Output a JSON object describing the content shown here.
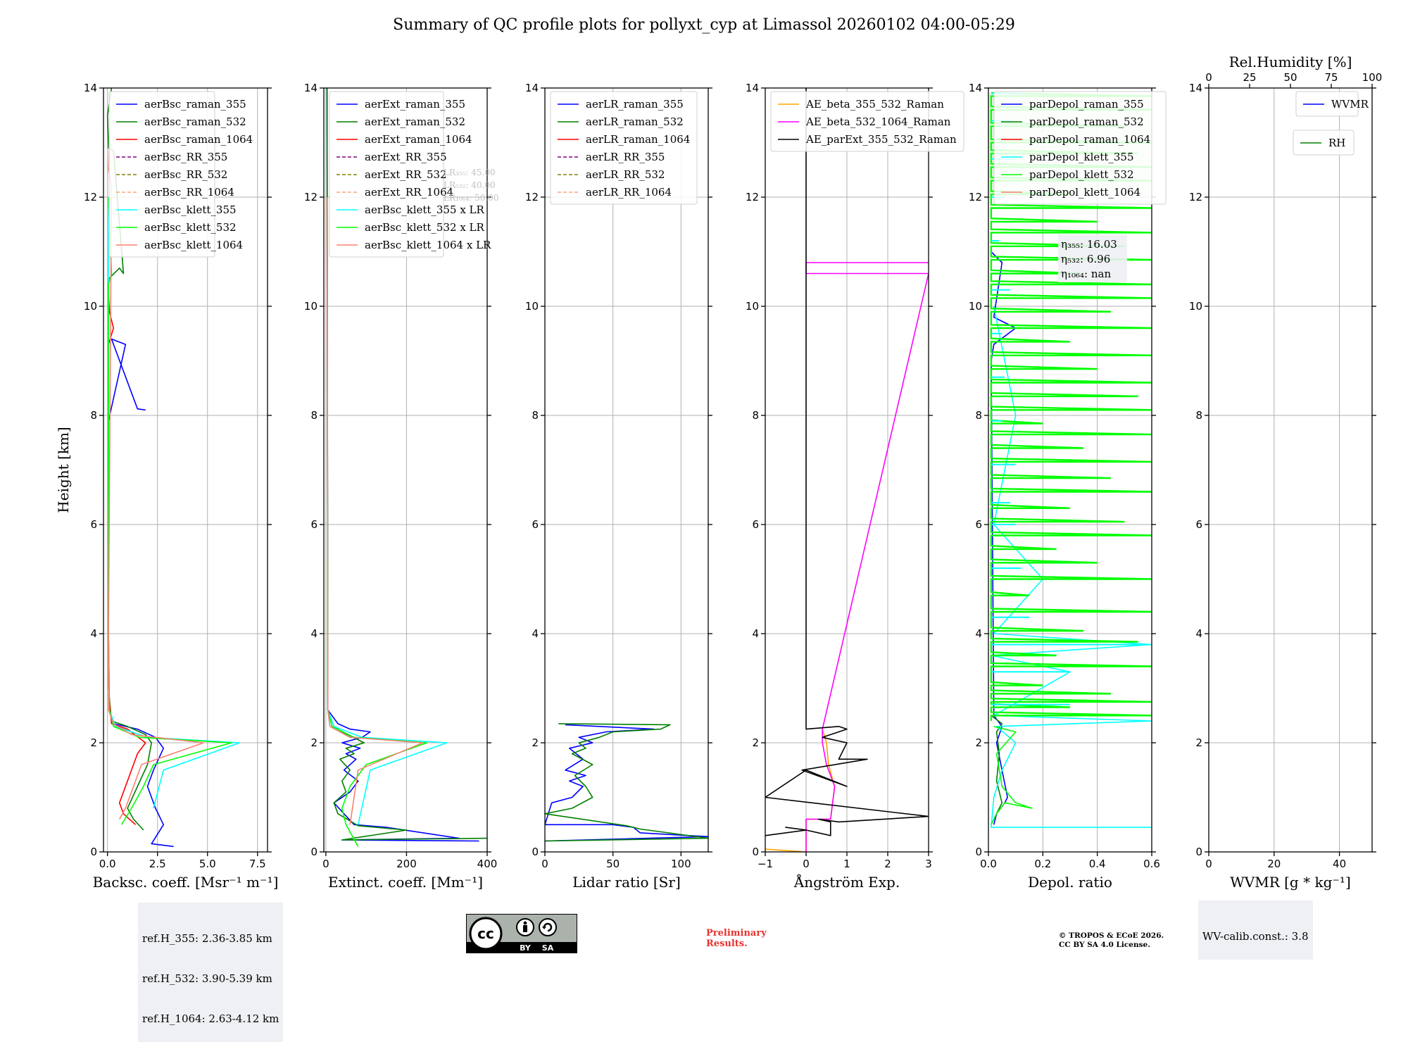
{
  "figure": {
    "title": "Summary of QC profile plots for pollyxt_cyp at Limassol 20260102 04:00-05:29"
  },
  "colors": {
    "raman_355": "#0000ff",
    "raman_532": "#008000",
    "raman_1064": "#ff0000",
    "rr_355": "#800080",
    "rr_532": "#808000",
    "rr_1064": "#ffa07a",
    "klett_355": "#00ffff",
    "klett_532": "#00ff00",
    "klett_1064": "#fa8072",
    "ae_beta_355_532": "#ffa500",
    "ae_beta_532_1064": "#ff00ff",
    "ae_parext": "#000000"
  },
  "chart_data": [
    {
      "type": "line",
      "id": "backscatter",
      "xlabel": "Backsc. coeff. [Msr⁻¹ m⁻¹]",
      "ylabel": "Height [km]",
      "xlim": [
        -0.2,
        8.0
      ],
      "ylim": [
        0,
        14
      ],
      "xticks": [
        0.0,
        2.5,
        5.0,
        7.5
      ],
      "xtick_labels": [
        "0.0",
        "2.5",
        "5.0",
        "7.5"
      ],
      "yticks": [
        0,
        2,
        4,
        6,
        8,
        10,
        12,
        14
      ],
      "legend": [
        "aerBsc_raman_355",
        "aerBsc_raman_532",
        "aerBsc_raman_1064",
        "aerBsc_RR_355",
        "aerBsc_RR_532",
        "aerBsc_RR_1064",
        "aerBsc_klett_355",
        "aerBsc_klett_532",
        "aerBsc_klett_1064"
      ],
      "series": [
        {
          "name": "aerBsc_raman_355",
          "x": [
            3.3,
            2.2,
            2.8,
            2.4,
            2.0,
            2.3,
            2.8,
            2.4,
            1.5,
            0.3,
            0.1,
            0.05,
            0.05,
            0.9,
            0.2,
            1.5,
            1.9
          ],
          "y": [
            0.1,
            0.15,
            0.5,
            0.8,
            1.2,
            1.5,
            1.9,
            2.1,
            2.25,
            2.35,
            2.6,
            4.0,
            7.9,
            9.3,
            9.4,
            8.12,
            8.1
          ]
        },
        {
          "name": "aerBsc_raman_532",
          "x": [
            1.8,
            1.3,
            1.0,
            1.5,
            2.0,
            2.2,
            1.9,
            1.0,
            0.2,
            0.05,
            0.05,
            0.6,
            0.8,
            0.3,
            0.05,
            0.0,
            0.2
          ],
          "y": [
            0.4,
            0.6,
            0.8,
            1.2,
            1.6,
            2.0,
            2.15,
            2.3,
            2.4,
            3.0,
            10.5,
            10.7,
            10.6,
            12.85,
            12.9,
            13.5,
            14.0
          ]
        },
        {
          "name": "aerBsc_raman_1064",
          "x": [
            1.4,
            0.8,
            0.6,
            1.0,
            1.3,
            1.5,
            1.9,
            1.0,
            0.2,
            0.05,
            0.05,
            0.3,
            0.1,
            0.05
          ],
          "y": [
            0.5,
            0.7,
            0.9,
            1.3,
            1.6,
            1.8,
            2.0,
            2.25,
            2.35,
            3.0,
            9.3,
            9.6,
            9.9,
            10.2
          ]
        },
        {
          "name": "aerBsc_klett_355",
          "x": [
            2.3,
            2.8,
            6.6,
            2.0,
            0.4,
            0.1,
            0.05,
            0.05,
            0.05
          ],
          "y": [
            0.8,
            1.5,
            2.0,
            2.1,
            2.3,
            2.6,
            4.0,
            8.0,
            12.0
          ]
        },
        {
          "name": "aerBsc_klett_532",
          "x": [
            0.7,
            1.2,
            1.8,
            2.3,
            6.2,
            1.6,
            0.3,
            0.1,
            0.05,
            0.05,
            0.2,
            0.05
          ],
          "y": [
            0.5,
            0.8,
            1.2,
            1.6,
            2.0,
            2.1,
            2.3,
            2.6,
            4.0,
            10.4,
            10.6,
            12.0
          ]
        },
        {
          "name": "aerBsc_klett_1064",
          "x": [
            0.6,
            0.9,
            1.3,
            1.7,
            4.8,
            1.2,
            0.3,
            0.05,
            0.05,
            0.2,
            0.05,
            0.1
          ],
          "y": [
            0.6,
            0.8,
            1.2,
            1.6,
            2.0,
            2.15,
            2.35,
            2.6,
            4.0,
            12.2,
            12.5,
            13.0
          ]
        }
      ]
    },
    {
      "type": "line",
      "id": "extinction",
      "xlabel": "Extinct. coeff. [Mm⁻¹]",
      "xlim": [
        -5,
        400
      ],
      "ylim": [
        0,
        14
      ],
      "xticks": [
        0,
        200,
        400
      ],
      "xtick_labels": [
        "0",
        "200",
        "400"
      ],
      "yticks": [
        0,
        2,
        4,
        6,
        8,
        10,
        12,
        14
      ],
      "legend": [
        "aerExt_raman_355",
        "aerExt_raman_532",
        "aerExt_raman_1064",
        "aerExt_RR_355",
        "aerExt_RR_532",
        "aerExt_RR_1064",
        "aerBsc_klett_355 x LR",
        "aerBsc_klett_532 x LR",
        "aerBsc_klett_1064 x LR"
      ],
      "lr_labels": [
        "LR₃₅₅: 45.00",
        "LR₅₃₂: 40.00",
        "LR₁₀₆₄: 50.00"
      ],
      "series": [
        {
          "name": "aerExt_raman_355",
          "x": [
            380,
            40,
            330,
            150,
            70,
            20,
            60,
            80,
            45,
            75,
            50,
            85,
            40,
            90,
            110,
            60,
            30,
            5,
            3
          ],
          "y": [
            0.2,
            0.22,
            0.25,
            0.45,
            0.5,
            0.9,
            1.1,
            1.3,
            1.5,
            1.7,
            1.8,
            1.9,
            2.0,
            2.1,
            2.2,
            2.25,
            2.35,
            2.6,
            14.0
          ]
        },
        {
          "name": "aerExt_raman_532",
          "x": [
            400,
            40,
            200,
            80,
            30,
            20,
            50,
            40,
            60,
            35,
            70,
            50,
            95,
            40,
            20,
            5,
            3
          ],
          "y": [
            0.25,
            0.22,
            0.4,
            0.48,
            0.7,
            0.9,
            1.1,
            1.3,
            1.5,
            1.7,
            1.8,
            1.9,
            2.0,
            2.2,
            2.3,
            2.6,
            14.0
          ]
        },
        {
          "name": "aerBsc_klett_355 x LR",
          "x": [
            80,
            110,
            300,
            90,
            20,
            5,
            3
          ],
          "y": [
            0.5,
            1.5,
            2.0,
            2.1,
            2.3,
            2.6,
            12.0
          ]
        },
        {
          "name": "aerBsc_klett_532 x LR",
          "x": [
            80,
            50,
            40,
            60,
            100,
            250,
            70,
            15,
            5,
            3
          ],
          "y": [
            0.1,
            0.5,
            0.8,
            1.2,
            1.6,
            2.0,
            2.1,
            2.3,
            2.6,
            12.0
          ]
        },
        {
          "name": "aerBsc_klett_1064 x LR",
          "x": [
            60,
            80,
            240,
            60,
            10,
            5,
            3
          ],
          "y": [
            0.5,
            1.5,
            2.0,
            2.1,
            2.3,
            2.6,
            12.0
          ]
        }
      ]
    },
    {
      "type": "line",
      "id": "lidar_ratio",
      "xlabel": "Lidar ratio [Sr]",
      "xlim": [
        0,
        120
      ],
      "ylim": [
        0,
        14
      ],
      "xticks": [
        0,
        50,
        100
      ],
      "xtick_labels": [
        "0",
        "50",
        "100"
      ],
      "yticks": [
        0,
        2,
        4,
        6,
        8,
        10,
        12,
        14
      ],
      "legend": [
        "aerLR_raman_355",
        "aerLR_raman_532",
        "aerLR_raman_1064",
        "aerLR_RR_355",
        "aerLR_RR_532",
        "aerLR_RR_1064"
      ],
      "series": [
        {
          "name": "aerLR_raman_355",
          "x": [
            0,
            120,
            70,
            65,
            50,
            0,
            5,
            20,
            28,
            18,
            30,
            15,
            28,
            18,
            35,
            25,
            45,
            80,
            15
          ],
          "y": [
            0.2,
            0.28,
            0.35,
            0.45,
            0.5,
            0.5,
            0.9,
            1.0,
            1.2,
            1.3,
            1.4,
            1.5,
            1.7,
            1.9,
            2.0,
            2.1,
            2.2,
            2.25,
            2.33
          ]
        },
        {
          "name": "aerLR_raman_532",
          "x": [
            0,
            120,
            70,
            60,
            0,
            20,
            35,
            30,
            22,
            35,
            20,
            30,
            25,
            40,
            50,
            85,
            92,
            10
          ],
          "y": [
            0.2,
            0.25,
            0.42,
            0.48,
            0.7,
            0.8,
            1.0,
            1.2,
            1.4,
            1.6,
            1.8,
            1.9,
            2.0,
            2.1,
            2.2,
            2.25,
            2.33,
            2.35
          ]
        }
      ]
    },
    {
      "type": "line",
      "id": "angstrom",
      "xlabel": "Ångström Exp.",
      "xlim": [
        -1,
        3
      ],
      "ylim": [
        0,
        14
      ],
      "xticks": [
        -1,
        0,
        1,
        2,
        3
      ],
      "xtick_labels": [
        "−1",
        "0",
        "1",
        "2",
        "3"
      ],
      "yticks": [
        0,
        2,
        4,
        6,
        8,
        10,
        12,
        14
      ],
      "legend": [
        "AE_beta_355_532_Raman",
        "AE_beta_532_1064_Raman",
        "AE_parExt_355_532_Raman"
      ],
      "series": [
        {
          "name": "AE_beta_355_532_Raman",
          "x": [
            -1,
            0,
            0,
            0.6,
            0.7,
            0.55,
            0.5,
            0.4
          ],
          "y": [
            0.05,
            0,
            0.6,
            0.6,
            1.2,
            1.6,
            2.0,
            2.25
          ]
        },
        {
          "name": "AE_beta_532_1064_Raman",
          "x": [
            0,
            0,
            0.6,
            0.7,
            0.5,
            0.4,
            0.4,
            3,
            3,
            0,
            0,
            3
          ],
          "y": [
            0,
            0.6,
            0.6,
            1.2,
            1.6,
            2.0,
            2.25,
            10.6,
            10.6,
            10.6,
            10.8,
            10.8
          ]
        },
        {
          "name": "AE_parExt_355_532_Raman",
          "x": [
            -1,
            0,
            -0.5,
            0,
            0.6,
            0.6,
            0.3,
            0.8,
            3,
            -1,
            0,
            1.0,
            -0.1,
            1.5,
            0.8,
            1.0,
            0.4,
            1.0,
            0.8,
            0,
            0,
            0
          ],
          "y": [
            0.3,
            0.4,
            0.45,
            0.4,
            0.3,
            0.55,
            0.6,
            0.55,
            0.65,
            1.0,
            1.5,
            1.2,
            1.5,
            1.7,
            1.7,
            2.0,
            2.1,
            2.25,
            2.3,
            2.25,
            2.3,
            14.0
          ]
        }
      ]
    },
    {
      "type": "line",
      "id": "depol",
      "xlabel": "Depol. ratio",
      "xlim": [
        0,
        0.6
      ],
      "ylim": [
        0,
        14
      ],
      "xticks": [
        0.0,
        0.2,
        0.4,
        0.6
      ],
      "xtick_labels": [
        "0.0",
        "0.2",
        "0.4",
        "0.6"
      ],
      "yticks": [
        0,
        2,
        4,
        6,
        8,
        10,
        12,
        14
      ],
      "legend": [
        "parDepol_raman_355",
        "parDepol_raman_532",
        "parDepol_raman_1064",
        "parDepol_klett_355",
        "parDepol_klett_532",
        "parDepol_klett_1064"
      ],
      "eta_labels": [
        "η₃₅₅: 16.03",
        "η₅₃₂: 6.96",
        "η₁₀₆₄: nan"
      ],
      "series": [
        {
          "name": "parDepol_raman_355",
          "x": [
            0.02,
            0.03,
            0.06,
            0.07,
            0.05,
            0.03,
            0.05,
            0.02,
            0.01,
            0.02,
            0.1,
            0.02,
            0.05,
            0.01
          ],
          "y": [
            0.5,
            0.7,
            0.9,
            1.0,
            1.5,
            2.0,
            2.3,
            2.5,
            9.0,
            9.3,
            9.6,
            9.8,
            10.8,
            11.0
          ]
        },
        {
          "name": "parDepol_raman_532",
          "x": [
            0.02,
            0.05,
            0.03,
            0.04,
            0.03,
            0.05,
            0.01
          ],
          "y": [
            0.6,
            0.9,
            1.3,
            1.8,
            2.2,
            2.35,
            2.5
          ]
        },
        {
          "name": "parDepol_klett_355",
          "x": [
            0.6,
            0.01,
            0.02,
            0.05,
            0.1,
            0.03,
            0.6,
            0.02,
            0.3,
            0.01,
            0.6,
            0.02,
            0.2,
            0.02,
            0.1,
            0.02
          ],
          "y": [
            0.45,
            0.45,
            1.0,
            1.5,
            2.0,
            2.3,
            2.4,
            2.5,
            3.3,
            3.6,
            3.8,
            4.0,
            5.0,
            6.0,
            8.0,
            10.0
          ]
        },
        {
          "name": "parDepol_klett_532",
          "x": [
            0.01,
            0.03,
            0.06,
            0.16,
            0.1,
            0.05,
            0.03,
            0.1,
            0.02
          ],
          "y": [
            0.5,
            0.7,
            0.9,
            0.8,
            0.9,
            1.2,
            1.8,
            2.2,
            2.3
          ]
        }
      ],
      "spikes_klett_532": {
        "y": [
          2.5,
          2.65,
          2.75,
          2.9,
          3.05,
          3.4,
          3.6,
          3.85,
          4.05,
          4.4,
          4.7,
          5.0,
          5.3,
          5.55,
          5.8,
          6.05,
          6.3,
          6.6,
          6.85,
          7.15,
          7.4,
          7.65,
          7.85,
          8.1,
          8.35,
          8.6,
          8.85,
          9.1,
          9.35,
          9.6,
          9.9,
          10.15,
          10.4,
          10.6,
          10.85,
          11.1,
          11.35,
          11.55,
          11.8,
          12.05,
          12.3,
          12.55,
          12.8,
          13.0,
          13.3,
          13.6,
          13.85
        ],
        "x": [
          0.6,
          0.3,
          0.6,
          0.45,
          0.2,
          0.6,
          0.25,
          0.55,
          0.35,
          0.6,
          0.15,
          0.6,
          0.4,
          0.25,
          0.6,
          0.5,
          0.3,
          0.6,
          0.45,
          0.6,
          0.35,
          0.6,
          0.2,
          0.6,
          0.55,
          0.6,
          0.4,
          0.6,
          0.3,
          0.6,
          0.45,
          0.6,
          0.6,
          0.35,
          0.6,
          0.5,
          0.6,
          0.4,
          0.6,
          0.3,
          0.6,
          0.6,
          0.55,
          0.6,
          0.5,
          0.6,
          0.6
        ]
      },
      "spikes_klett_355": {
        "y": [
          2.7,
          3.3,
          3.8,
          4.3,
          5.2,
          6.0,
          6.4,
          7.1,
          7.9,
          8.7,
          9.5,
          10.3,
          11.2,
          12.0,
          12.7,
          13.4,
          13.9
        ],
        "x": [
          0.3,
          0.3,
          0.6,
          0.15,
          0.12,
          0.1,
          0.08,
          0.1,
          0.05,
          0.06,
          0.05,
          0.08,
          0.04,
          0.06,
          0.1,
          0.08,
          0.12
        ]
      }
    },
    {
      "type": "line",
      "id": "wvmr",
      "xlabel": "WVMR [g * kg⁻¹]",
      "top_xlabel": "Rel.Humidity [%]",
      "xlim": [
        0,
        50
      ],
      "top_xlim": [
        0,
        100
      ],
      "ylim": [
        0,
        14
      ],
      "xticks": [
        0,
        20,
        40
      ],
      "xtick_labels": [
        "0",
        "20",
        "40"
      ],
      "top_xticks": [
        0,
        25,
        50,
        75,
        100
      ],
      "top_xtick_labels": [
        "0",
        "25",
        "50",
        "75",
        "100"
      ],
      "yticks": [
        0,
        2,
        4,
        6,
        8,
        10,
        12,
        14
      ],
      "legend": [
        "WVMR"
      ],
      "legend_top": [
        "RH"
      ],
      "series": []
    }
  ],
  "footer": {
    "ref_heights": [
      "ref.H_355: 2.36-3.85 km",
      "ref.H_532: 3.90-5.39 km",
      "ref.H_1064: 2.63-4.12 km"
    ],
    "wv_calib": "WV-calib.const.: 3.8",
    "preliminary": [
      "Preliminary",
      "Results."
    ],
    "copyright": [
      "© TROPOS & ECoE 2026.",
      "CC BY SA 4.0 License."
    ],
    "cc_badge": {
      "text": "cc",
      "by": "BY",
      "sa": "SA"
    }
  }
}
